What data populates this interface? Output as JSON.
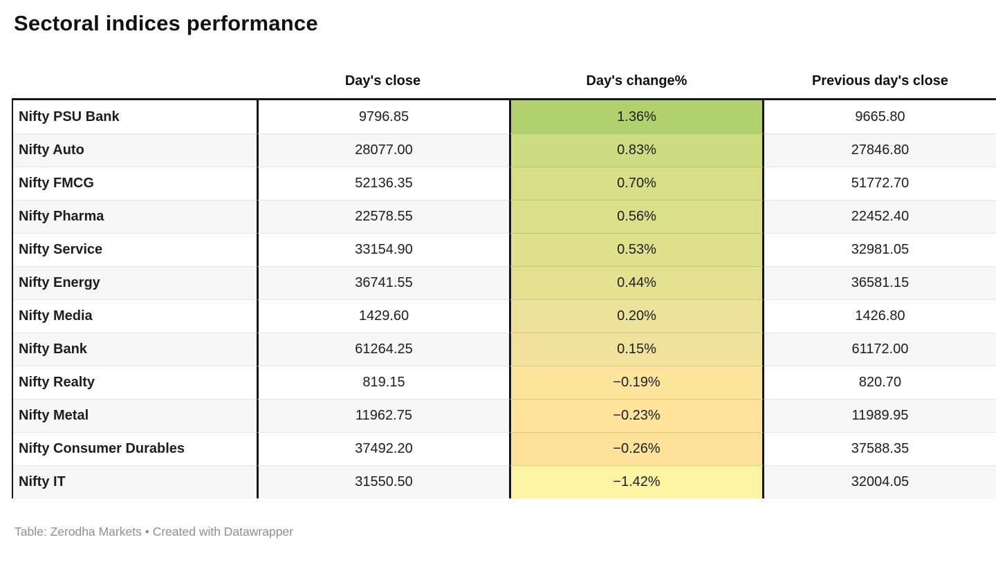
{
  "title": "Sectoral indices performance",
  "chart_data": {
    "type": "table",
    "title": "Sectoral indices performance",
    "columns": [
      "",
      "Day's close",
      "Day's change%",
      "Previous day's close"
    ],
    "heatmap_column": "Day's change%",
    "heat_scale": {
      "max_color": "#b1d16e",
      "mid_color": "#ede29a",
      "min_color": "#fcf4a3"
    },
    "rows": [
      {
        "label": "Nifty PSU Bank",
        "days_close": "9796.85",
        "days_change_pct": "1.36%",
        "previous_close": "9665.80",
        "heat_color": "#b1d16e"
      },
      {
        "label": "Nifty Auto",
        "days_close": "28077.00",
        "days_change_pct": "0.83%",
        "previous_close": "27846.80",
        "heat_color": "#cedc81"
      },
      {
        "label": "Nifty FMCG",
        "days_close": "52136.35",
        "days_change_pct": "0.70%",
        "previous_close": "51772.70",
        "heat_color": "#d7de86"
      },
      {
        "label": "Nifty Pharma",
        "days_close": "22578.55",
        "days_change_pct": "0.56%",
        "previous_close": "22452.40",
        "heat_color": "#dcdf8a"
      },
      {
        "label": "Nifty Service",
        "days_close": "33154.90",
        "days_change_pct": "0.53%",
        "previous_close": "32981.05",
        "heat_color": "#dee08c"
      },
      {
        "label": "Nifty Energy",
        "days_close": "36741.55",
        "days_change_pct": "0.44%",
        "previous_close": "36581.15",
        "heat_color": "#e3e191"
      },
      {
        "label": "Nifty Media",
        "days_close": "1429.60",
        "days_change_pct": "0.20%",
        "previous_close": "1426.80",
        "heat_color": "#ede29a"
      },
      {
        "label": "Nifty Bank",
        "days_close": "61264.25",
        "days_change_pct": "0.15%",
        "previous_close": "61172.00",
        "heat_color": "#f0e29d"
      },
      {
        "label": "Nifty Realty",
        "days_close": "819.15",
        "days_change_pct": "−0.19%",
        "previous_close": "820.70",
        "heat_color": "#fde49d"
      },
      {
        "label": "Nifty Metal",
        "days_close": "11962.75",
        "days_change_pct": "−0.23%",
        "previous_close": "11989.95",
        "heat_color": "#fde39c"
      },
      {
        "label": "Nifty Consumer Durables",
        "days_close": "37492.20",
        "days_change_pct": "−0.26%",
        "previous_close": "37588.35",
        "heat_color": "#fce19a"
      },
      {
        "label": "Nifty IT",
        "days_close": "31550.50",
        "days_change_pct": "−1.42%",
        "previous_close": "32004.05",
        "heat_color": "#fcf4a3"
      }
    ]
  },
  "footer": {
    "source_prefix": "Table: ",
    "source_name": "Zerodha Markets",
    "separator": " • ",
    "attribution": "Created with Datawrapper"
  },
  "colors": {
    "table_border": "#161616",
    "row_stripe": "#f6f6f6",
    "row_separator": "#e4e4e4",
    "footer_text": "#8f8f8f"
  }
}
